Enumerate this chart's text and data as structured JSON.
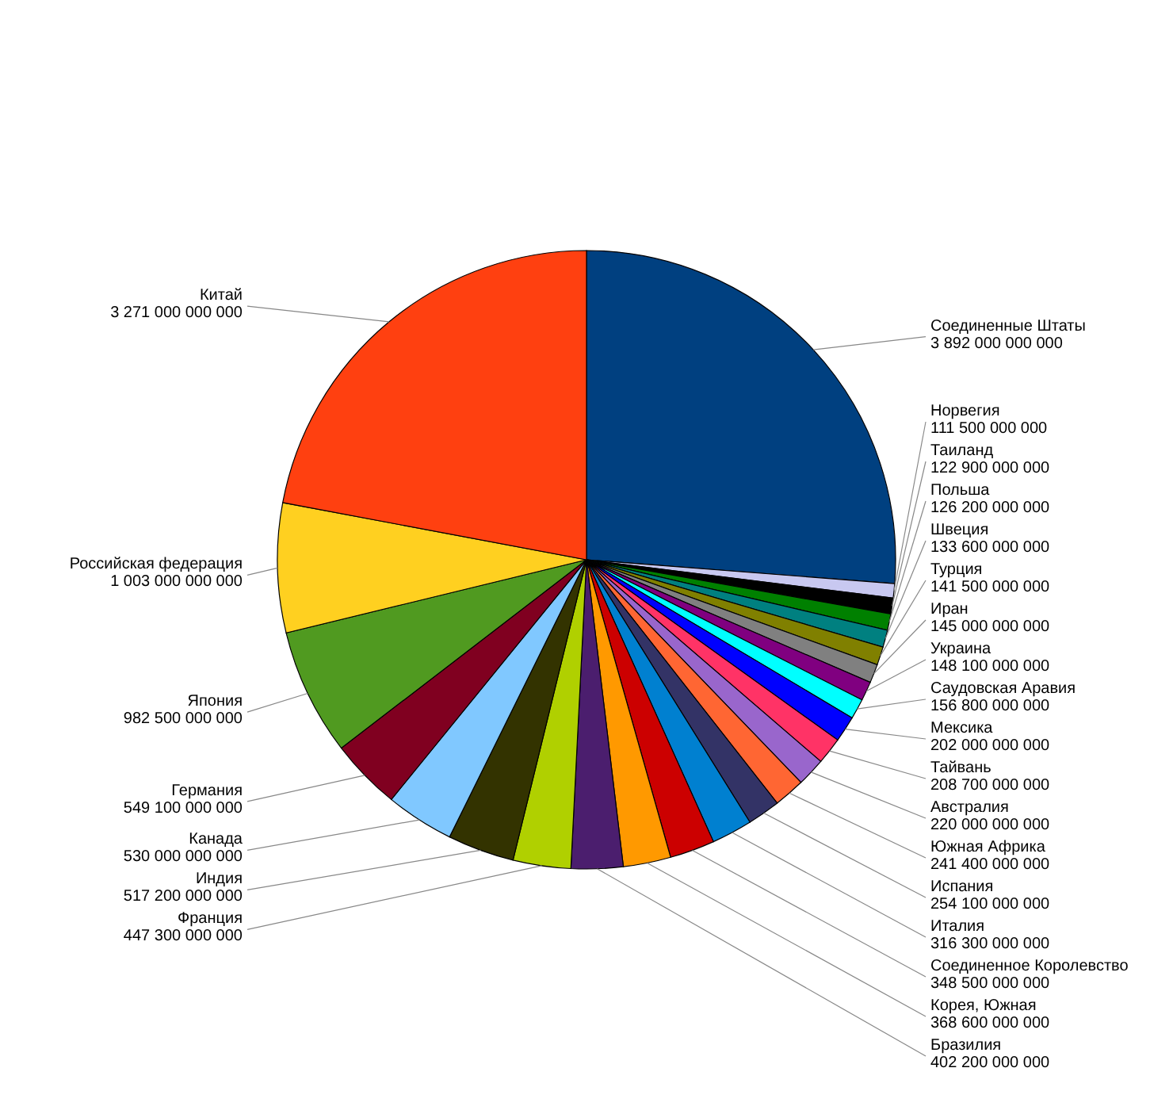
{
  "chart_data": {
    "type": "pie",
    "data_labels": true,
    "legend": false,
    "categories": [
      "Соединенные Штаты",
      "Норвегия",
      "Таиланд",
      "Польша",
      "Швеция",
      "Турция",
      "Иран",
      "Украина",
      "Саудовская Аравия",
      "Мексика",
      "Тайвань",
      "Австралия",
      "Южная Африка",
      "Испания",
      "Италия",
      "Соединенное Королевство",
      "Корея, Южная",
      "Бразилия",
      "Франция",
      "Индия",
      "Канада",
      "Германия",
      "Япония",
      "Российская федерация",
      "Китай"
    ],
    "values": [
      3892000000000,
      111500000000,
      122900000000,
      126200000000,
      133600000000,
      141500000000,
      145000000000,
      148100000000,
      156800000000,
      202000000000,
      208700000000,
      220000000000,
      241400000000,
      254100000000,
      316300000000,
      348500000000,
      368600000000,
      402200000000,
      447300000000,
      517200000000,
      530000000000,
      549100000000,
      982500000000,
      1003000000000,
      3271000000000
    ],
    "colors": [
      "#004080",
      "#c8c8f0",
      "#000000",
      "#008000",
      "#008080",
      "#808000",
      "#808080",
      "#800080",
      "#00ffff",
      "#0000ff",
      "#ff3366",
      "#9966cc",
      "#ff6633",
      "#333366",
      "#0080d0",
      "#cc0000",
      "#ff9900",
      "#4b1e6e",
      "#b0d000",
      "#333300",
      "#80c8ff",
      "#800020",
      "#509a20",
      "#ffd020",
      "#ff4010"
    ]
  }
}
